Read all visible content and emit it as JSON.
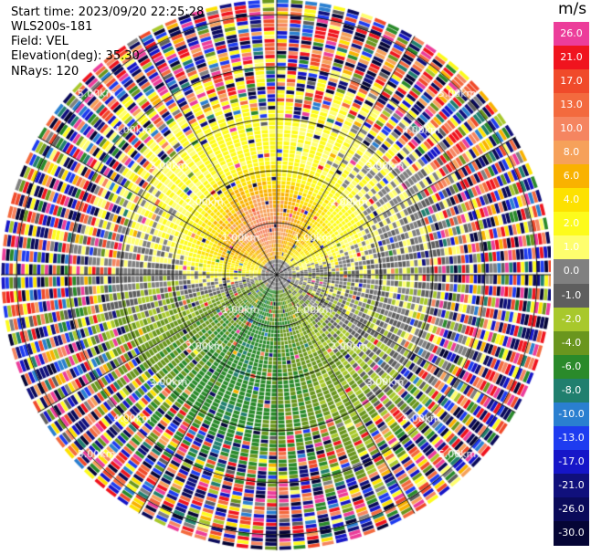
{
  "info": {
    "start_time": "Start time: 2023/09/20 22:25:28",
    "instrument": "WLS200s-181",
    "field": "Field: VEL",
    "elevation": "Elevation(deg): 35.30",
    "nrays": "NRays: 120"
  },
  "colorbar": {
    "unit": "m/s",
    "segments": [
      {
        "label": "26.0",
        "color": "#ec3d9a"
      },
      {
        "label": "21.0",
        "color": "#f0141e"
      },
      {
        "label": "17.0",
        "color": "#f04a2a"
      },
      {
        "label": "13.0",
        "color": "#f36a3e"
      },
      {
        "label": "10.0",
        "color": "#f58560"
      },
      {
        "label": "8.0",
        "color": "#f6a15a"
      },
      {
        "label": "6.0",
        "color": "#f9b200"
      },
      {
        "label": "4.0",
        "color": "#fde100"
      },
      {
        "label": "2.0",
        "color": "#fdfb1c"
      },
      {
        "label": "1.0",
        "color": "#fefe6e"
      },
      {
        "label": "0.0",
        "color": "#808080"
      },
      {
        "label": "-1.0",
        "color": "#5e5e5e"
      },
      {
        "label": "-2.0",
        "color": "#a8c82c"
      },
      {
        "label": "-4.0",
        "color": "#6a961e"
      },
      {
        "label": "-6.0",
        "color": "#2a8a2a"
      },
      {
        "label": "-8.0",
        "color": "#207f6e"
      },
      {
        "label": "-10.0",
        "color": "#2a7fd0"
      },
      {
        "label": "-13.0",
        "color": "#1e3cf0"
      },
      {
        "label": "-17.0",
        "color": "#1616c8"
      },
      {
        "label": "-21.0",
        "color": "#10107c"
      },
      {
        "label": "-26.0",
        "color": "#0a0a5a"
      },
      {
        "label": "-30.0",
        "color": "#050535"
      }
    ]
  },
  "chart_data": {
    "type": "heatmap",
    "projection": "polar PPI",
    "field": "VEL",
    "units": "m/s",
    "nrays": 120,
    "range_rings_km": [
      1.0,
      2.0,
      3.0,
      4.0,
      5.0
    ],
    "ring_labels": [
      "1.00km",
      "2.00km",
      "3.00km",
      "4.00km",
      "5.00km"
    ],
    "max_range_km": 5.3,
    "spokes_deg": [
      0,
      30,
      60,
      90,
      120,
      150,
      180,
      210,
      240,
      270,
      300,
      330
    ],
    "color_scale": [
      -30,
      -26,
      -21,
      -17,
      -13,
      -10,
      -8,
      -6,
      -4,
      -2,
      -1,
      0,
      1,
      2,
      4,
      6,
      8,
      10,
      13,
      17,
      21,
      26
    ],
    "pattern": {
      "positive_sector_deg": [
        300,
        140
      ],
      "negative_sector_deg": [
        150,
        290
      ],
      "noisy_beyond_km": 3.0,
      "approx_max_positive_ms": 13,
      "approx_min_negative_ms": -6
    }
  }
}
